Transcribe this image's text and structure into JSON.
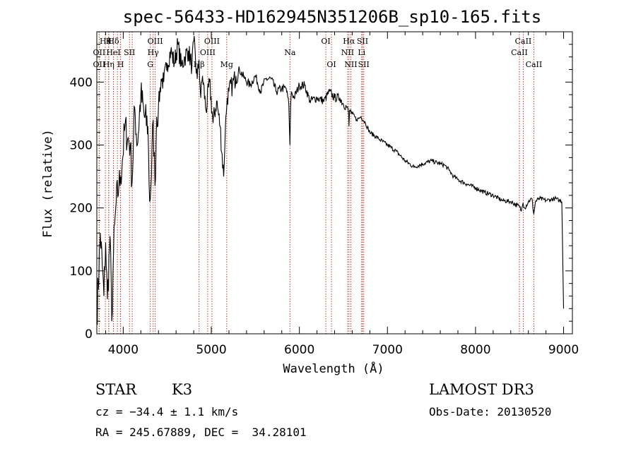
{
  "chart_data": {
    "type": "line",
    "title": "spec-56433-HD162945N351206B_sp10-165.fits",
    "xlabel": "Wavelength (Å)",
    "ylabel": "Flux (relative)",
    "xlim": [
      3700,
      9100
    ],
    "ylim": [
      0,
      480
    ],
    "xticks": [
      4000,
      5000,
      6000,
      7000,
      8000,
      9000
    ],
    "yticks": [
      0,
      100,
      200,
      300,
      400
    ],
    "grid": false,
    "line_color": "#000000",
    "marker_color": "#c0392b",
    "spectrum": {
      "x": [
        3700,
        3740,
        3780,
        3800,
        3820,
        3850,
        3870,
        3890,
        3920,
        3950,
        3970,
        3990,
        4020,
        4050,
        4080,
        4100,
        4130,
        4160,
        4200,
        4240,
        4280,
        4300,
        4320,
        4340,
        4360,
        4380,
        4400,
        4430,
        4460,
        4500,
        4540,
        4580,
        4620,
        4660,
        4700,
        4740,
        4780,
        4800,
        4840,
        4860,
        4880,
        4900,
        4940,
        4980,
        5020,
        5060,
        5100,
        5140,
        5160,
        5170,
        5180,
        5200,
        5240,
        5280,
        5320,
        5380,
        5440,
        5500,
        5560,
        5620,
        5680,
        5740,
        5800,
        5850,
        5880,
        5893,
        5900,
        5910,
        5940,
        6000,
        6060,
        6120,
        6200,
        6280,
        6340,
        6400,
        6460,
        6500,
        6540,
        6560,
        6563,
        6570,
        6600,
        6650,
        6700,
        6750,
        6800,
        6900,
        7000,
        7100,
        7200,
        7300,
        7400,
        7500,
        7600,
        7650,
        7700,
        7750,
        7800,
        7900,
        8000,
        8100,
        8200,
        8300,
        8400,
        8500,
        8520,
        8540,
        8560,
        8600,
        8640,
        8662,
        8680,
        8720,
        8800,
        8850,
        8900,
        8950,
        8980,
        9000
      ],
      "y": [
        25,
        160,
        60,
        145,
        55,
        155,
        20,
        130,
        210,
        235,
        250,
        275,
        330,
        310,
        300,
        240,
        360,
        300,
        380,
        345,
        330,
        210,
        250,
        340,
        235,
        345,
        360,
        405,
        400,
        430,
        450,
        430,
        460,
        425,
        440,
        450,
        425,
        465,
        405,
        435,
        375,
        410,
        355,
        400,
        335,
        370,
        330,
        250,
        330,
        350,
        375,
        385,
        395,
        410,
        420,
        405,
        395,
        410,
        385,
        405,
        405,
        385,
        390,
        390,
        365,
        300,
        360,
        385,
        375,
        395,
        395,
        370,
        375,
        370,
        385,
        375,
        375,
        365,
        360,
        350,
        330,
        355,
        350,
        340,
        345,
        335,
        320,
        310,
        300,
        290,
        275,
        265,
        270,
        275,
        270,
        268,
        260,
        250,
        245,
        238,
        232,
        225,
        220,
        212,
        210,
        202,
        195,
        208,
        200,
        210,
        215,
        190,
        210,
        215,
        212,
        213,
        215,
        212,
        210,
        40
      ]
    },
    "lines": [
      {
        "x": 3797,
        "label": "Hθ",
        "row": 1
      },
      {
        "x": 3835,
        "label": "K",
        "row": 1
      },
      {
        "x": 3889,
        "label": "Hδ",
        "row": 1
      },
      {
        "x": 3934,
        "label": "",
        "row": 0
      },
      {
        "x": 3968,
        "label": "",
        "row": 0
      },
      {
        "x": 3727,
        "label": "OII",
        "row": 2
      },
      {
        "x": 3889,
        "label": "HeI",
        "row": 2
      },
      {
        "x": 4071,
        "label": "SII",
        "row": 2
      },
      {
        "x": 3727,
        "label": "OII",
        "row": 3
      },
      {
        "x": 3835,
        "label": "Hη",
        "row": 3
      },
      {
        "x": 3970,
        "label": "H",
        "row": 3
      },
      {
        "x": 4102,
        "label": "",
        "row": 0
      },
      {
        "x": 4307,
        "label": "G",
        "row": 3
      },
      {
        "x": 4340,
        "label": "Hγ",
        "row": 2
      },
      {
        "x": 4363,
        "label": "OIII",
        "row": 1
      },
      {
        "x": 4861,
        "label": "Hβ",
        "row": 3
      },
      {
        "x": 4959,
        "label": "OIII",
        "row": 2
      },
      {
        "x": 5007,
        "label": "OIII",
        "row": 1
      },
      {
        "x": 5175,
        "label": "Mg",
        "row": 3
      },
      {
        "x": 5893,
        "label": "Na",
        "row": 2
      },
      {
        "x": 6300,
        "label": "OI",
        "row": 1
      },
      {
        "x": 6364,
        "label": "OI",
        "row": 3
      },
      {
        "x": 6548,
        "label": "NII",
        "row": 2
      },
      {
        "x": 6563,
        "label": "Hα",
        "row": 1
      },
      {
        "x": 6584,
        "label": "NII",
        "row": 3
      },
      {
        "x": 6707,
        "label": "Li",
        "row": 2
      },
      {
        "x": 6717,
        "label": "SII",
        "row": 1
      },
      {
        "x": 6731,
        "label": "SII",
        "row": 3
      },
      {
        "x": 8498,
        "label": "CaII",
        "row": 2
      },
      {
        "x": 8542,
        "label": "CaII",
        "row": 1
      },
      {
        "x": 8662,
        "label": "CaII",
        "row": 3
      }
    ]
  },
  "info": {
    "object_class": "STAR",
    "subclass": "K3",
    "redshift": "cz = −34.4 ± 1.1 km/s",
    "coords": "RA = 245.67889, DEC =  34.28101",
    "survey": "LAMOST DR3",
    "obs_date": "Obs-Date: 20130520"
  }
}
